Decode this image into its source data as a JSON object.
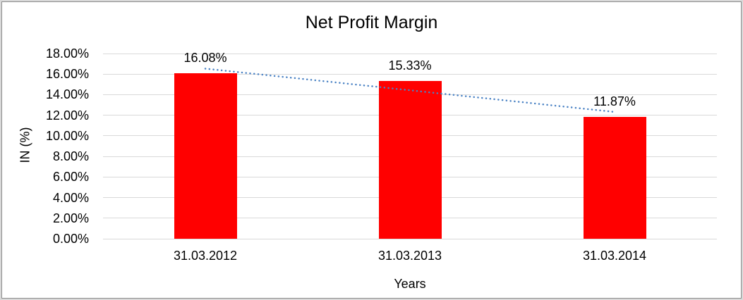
{
  "chart_data": {
    "type": "bar",
    "title": "Net Profit Margin",
    "xlabel": "Years",
    "ylabel": "IN (%)",
    "categories": [
      "31.03.2012",
      "31.03.2013",
      "31.03.2014"
    ],
    "values": [
      16.08,
      15.33,
      11.87
    ],
    "data_labels": [
      "16.08%",
      "15.33%",
      "11.87%"
    ],
    "ylim": [
      0,
      18
    ],
    "ytick_step": 2,
    "ytick_labels": [
      "0.00%",
      "2.00%",
      "4.00%",
      "6.00%",
      "8.00%",
      "10.00%",
      "12.00%",
      "14.00%",
      "16.00%",
      "18.00%"
    ],
    "grid": true,
    "legend_position": "none",
    "bar_color": "#ff0000",
    "gridline_color": "#d9d9d9",
    "text_color": "#000000",
    "trendline": {
      "type": "linear",
      "style": "dotted",
      "color": "#4a82c4"
    }
  }
}
